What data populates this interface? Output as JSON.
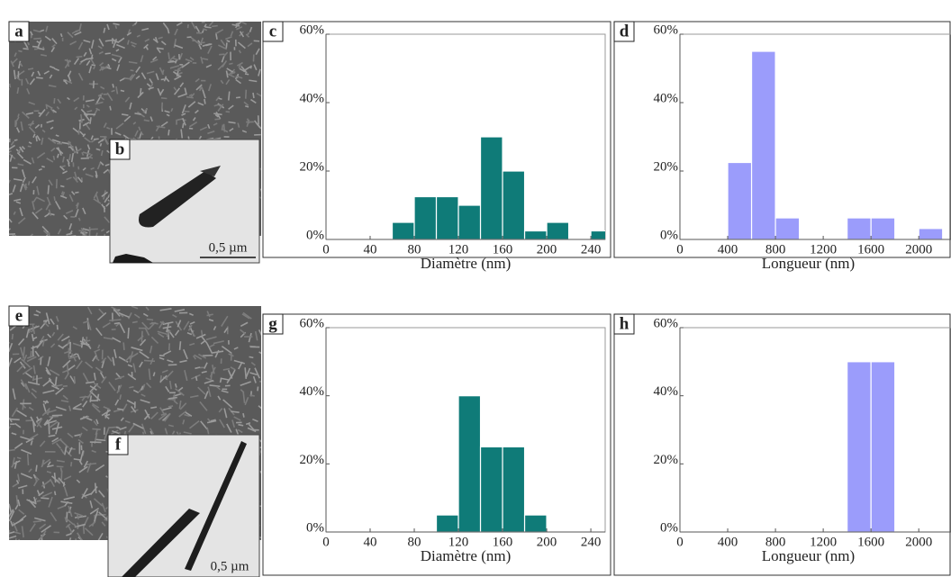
{
  "chart_data": [
    {
      "type": "histogram",
      "panel": "c",
      "xlabel": "Diamètre (nm)",
      "color": "#0f7b78",
      "bins": [
        60,
        80,
        100,
        120,
        140,
        160,
        180,
        200,
        220,
        240,
        260
      ],
      "values": [
        5,
        12.5,
        12.5,
        10,
        30,
        20,
        2.5,
        5,
        0,
        2.5
      ],
      "xlim": [
        0,
        253
      ],
      "xticks": [
        0,
        40,
        80,
        120,
        160,
        200,
        240
      ],
      "ylim": [
        0,
        60
      ],
      "yticks": [
        {
          "value": 0,
          "label": "0%"
        },
        {
          "value": 20,
          "label": "20%"
        },
        {
          "value": 40,
          "label": "40%"
        },
        {
          "value": 60,
          "label": "60%"
        }
      ]
    },
    {
      "type": "histogram",
      "panel": "d",
      "xlabel": "Longueur (nm)",
      "color": "#9b9cfb",
      "bins": [
        400,
        600,
        800,
        1000,
        1200,
        1400,
        1600,
        1800,
        2000,
        2200
      ],
      "values": [
        22.5,
        55,
        6.3,
        0,
        0,
        6.3,
        6.3,
        0,
        3.2
      ],
      "xlim": [
        0,
        2270
      ],
      "xticks": [
        0,
        400,
        800,
        1200,
        1600,
        2000
      ],
      "ylim": [
        0,
        60
      ],
      "yticks": [
        {
          "value": 0,
          "label": "0%"
        },
        {
          "value": 20,
          "label": "20%"
        },
        {
          "value": 40,
          "label": "40%"
        },
        {
          "value": 60,
          "label": "60%"
        }
      ]
    },
    {
      "type": "histogram",
      "panel": "g",
      "xlabel": "Diamètre (nm)",
      "color": "#0f7b78",
      "bins": [
        100,
        120,
        140,
        160,
        180,
        200
      ],
      "values": [
        5,
        40,
        25,
        25,
        5
      ],
      "xlim": [
        0,
        253
      ],
      "xticks": [
        0,
        40,
        80,
        120,
        160,
        200,
        240
      ],
      "ylim": [
        0,
        60
      ],
      "yticks": [
        {
          "value": 0,
          "label": "0%"
        },
        {
          "value": 20,
          "label": "20%"
        },
        {
          "value": 40,
          "label": "40%"
        },
        {
          "value": 60,
          "label": "60%"
        }
      ]
    },
    {
      "type": "histogram",
      "panel": "h",
      "xlabel": "Longueur (nm)",
      "color": "#9b9cfb",
      "bins": [
        1400,
        1600,
        1800
      ],
      "values": [
        50,
        50
      ],
      "xlim": [
        0,
        2270
      ],
      "xticks": [
        0,
        400,
        800,
        1200,
        1600,
        2000
      ],
      "ylim": [
        0,
        60
      ],
      "yticks": [
        {
          "value": 0,
          "label": "0%"
        },
        {
          "value": 20,
          "label": "20%"
        },
        {
          "value": 40,
          "label": "40%"
        },
        {
          "value": 60,
          "label": "60%"
        }
      ]
    }
  ],
  "images": [
    {
      "panel": "a"
    },
    {
      "panel": "b",
      "scale": "0,5 µm"
    },
    {
      "panel": "e"
    },
    {
      "panel": "f",
      "scale": "0,5 µm"
    }
  ]
}
